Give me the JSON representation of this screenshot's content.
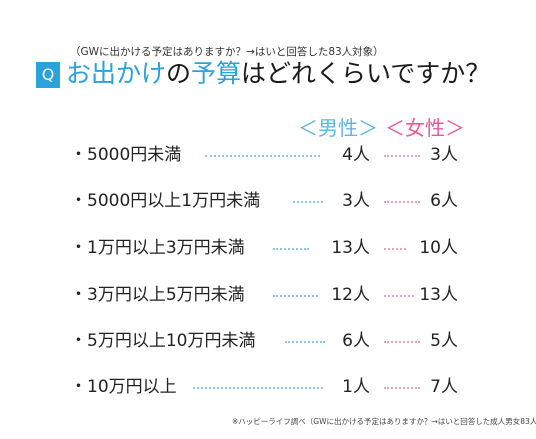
{
  "subtitle": "（GWに出かける予定はありますか？→はいと回答した83人対象）",
  "q_badge": "Q",
  "title": {
    "part1": "お出かけ",
    "part2": "の",
    "part3": "予算",
    "part4": "はどれくらいですか？"
  },
  "headers": {
    "male": "＜男性＞",
    "female": "＜女性＞"
  },
  "colors": {
    "accent_blue": "#2aa2dc",
    "male_blue": "#5fb6e2",
    "female_pink": "#e25b9c"
  },
  "rows": [
    {
      "label": "・5000円未満",
      "male": "4人",
      "female": "3人"
    },
    {
      "label": "・5000円以上1万円未満",
      "male": "3人",
      "female": "6人"
    },
    {
      "label": "・1万円以上3万円未満",
      "male": "13人",
      "female": "10人"
    },
    {
      "label": "・3万円以上5万円未満",
      "male": "12人",
      "female": "13人"
    },
    {
      "label": "・5万円以上10万円未満",
      "male": "6人",
      "female": "5人"
    },
    {
      "label": "・10万円以上",
      "male": "1人",
      "female": "7人"
    }
  ],
  "footnote": "※ハッピーライフ調べ（GWに出かける予定はありますか？→はいと回答した成人男女83人対象）"
}
